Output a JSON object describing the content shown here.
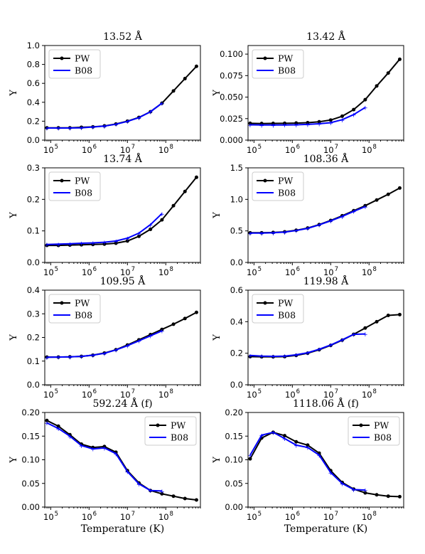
{
  "colors": {
    "PW": "#000000",
    "B08": "#0000ff"
  },
  "x_tick_labels": [
    "10",
    "10",
    "10",
    "10"
  ],
  "x_tick_exponents": [
    "5",
    "6",
    "7",
    "8"
  ],
  "chart_data": [
    {
      "type": "line",
      "title": "13.52 Å",
      "xlabel": "",
      "ylabel": "Y",
      "xscale": "log",
      "xlim": [
        70000,
        800000000
      ],
      "ylim": [
        0.0,
        1.0
      ],
      "yticks": [
        0.0,
        0.2,
        0.4,
        0.6,
        0.8,
        1.0
      ],
      "ytick_labels": [
        "0.0",
        "0.2",
        "0.4",
        "0.6",
        "0.8",
        "1.0"
      ],
      "legend": "upper-left",
      "series": [
        {
          "name": "PW",
          "x": [
            79400,
            158500,
            316200,
            631000,
            1259000,
            2512000,
            5012000,
            10000000,
            19950000,
            39810000,
            79430000,
            158500000,
            316200000,
            631000000
          ],
          "y": [
            0.13,
            0.13,
            0.13,
            0.135,
            0.14,
            0.15,
            0.17,
            0.2,
            0.24,
            0.3,
            0.39,
            0.52,
            0.65,
            0.78
          ]
        },
        {
          "name": "B08",
          "x": [
            79400,
            158500,
            316200,
            631000,
            1259000,
            2512000,
            5012000,
            10000000,
            19950000,
            39810000,
            79430000
          ],
          "y": [
            0.128,
            0.127,
            0.128,
            0.13,
            0.138,
            0.148,
            0.168,
            0.198,
            0.237,
            0.3,
            0.39
          ]
        }
      ]
    },
    {
      "type": "line",
      "title": "13.42 Å",
      "xlabel": "",
      "ylabel": "Y",
      "xscale": "log",
      "xlim": [
        70000,
        800000000
      ],
      "ylim": [
        0.0,
        0.11
      ],
      "yticks": [
        0.0,
        0.025,
        0.05,
        0.075,
        0.1
      ],
      "ytick_labels": [
        "0.000",
        "0.025",
        "0.050",
        "0.075",
        "0.100"
      ],
      "legend": "upper-left",
      "series": [
        {
          "name": "PW",
          "x": [
            79400,
            158500,
            316200,
            631000,
            1259000,
            2512000,
            5012000,
            10000000,
            19950000,
            39810000,
            79430000,
            158500000,
            316200000,
            631000000
          ],
          "y": [
            0.0195,
            0.0193,
            0.0194,
            0.0195,
            0.0198,
            0.0203,
            0.0213,
            0.0233,
            0.0278,
            0.0355,
            0.047,
            0.063,
            0.078,
            0.094
          ]
        },
        {
          "name": "B08",
          "x": [
            79400,
            158500,
            316200,
            631000,
            1259000,
            2512000,
            5012000,
            10000000,
            19950000,
            39810000,
            79430000
          ],
          "y": [
            0.0178,
            0.0175,
            0.0175,
            0.0176,
            0.0178,
            0.0183,
            0.019,
            0.0203,
            0.0237,
            0.0297,
            0.038
          ]
        }
      ]
    },
    {
      "type": "line",
      "title": "13.74 Å",
      "xlabel": "",
      "ylabel": "Y",
      "xscale": "log",
      "xlim": [
        70000,
        800000000
      ],
      "ylim": [
        0.0,
        0.3
      ],
      "yticks": [
        0.0,
        0.1,
        0.2,
        0.3
      ],
      "ytick_labels": [
        "0.0",
        "0.1",
        "0.2",
        "0.3"
      ],
      "legend": "upper-left",
      "series": [
        {
          "name": "PW",
          "x": [
            79400,
            158500,
            316200,
            631000,
            1259000,
            2512000,
            5012000,
            10000000,
            19950000,
            39810000,
            79430000,
            158500000,
            316200000,
            631000000
          ],
          "y": [
            0.054,
            0.054,
            0.055,
            0.056,
            0.057,
            0.058,
            0.061,
            0.068,
            0.083,
            0.105,
            0.135,
            0.18,
            0.225,
            0.27
          ]
        },
        {
          "name": "B08",
          "x": [
            79400,
            158500,
            316200,
            631000,
            1259000,
            2512000,
            5012000,
            10000000,
            19950000,
            39810000,
            79430000
          ],
          "y": [
            0.057,
            0.058,
            0.059,
            0.061,
            0.062,
            0.064,
            0.068,
            0.077,
            0.093,
            0.12,
            0.155
          ]
        }
      ]
    },
    {
      "type": "line",
      "title": "108.36 Å",
      "xlabel": "",
      "ylabel": "Y",
      "xscale": "log",
      "xlim": [
        70000,
        800000000
      ],
      "ylim": [
        0.0,
        1.5
      ],
      "yticks": [
        0.0,
        0.5,
        1.0,
        1.5
      ],
      "ytick_labels": [
        "0.0",
        "0.5",
        "1.0",
        "1.5"
      ],
      "legend": "upper-left",
      "series": [
        {
          "name": "PW",
          "x": [
            79400,
            158500,
            316200,
            631000,
            1259000,
            2512000,
            5012000,
            10000000,
            19950000,
            39810000,
            79430000,
            158500000,
            316200000,
            631000000
          ],
          "y": [
            0.47,
            0.47,
            0.475,
            0.485,
            0.51,
            0.545,
            0.6,
            0.665,
            0.74,
            0.82,
            0.9,
            0.99,
            1.08,
            1.18
          ]
        },
        {
          "name": "B08",
          "x": [
            79400,
            158500,
            316200,
            631000,
            1259000,
            2512000,
            5012000,
            10000000,
            19950000,
            39810000,
            79430000
          ],
          "y": [
            0.465,
            0.465,
            0.47,
            0.48,
            0.505,
            0.54,
            0.595,
            0.66,
            0.73,
            0.81,
            0.885
          ]
        }
      ]
    },
    {
      "type": "line",
      "title": "109.95 Å",
      "xlabel": "",
      "ylabel": "Y",
      "xscale": "log",
      "xlim": [
        70000,
        800000000
      ],
      "ylim": [
        0.0,
        0.4
      ],
      "yticks": [
        0.0,
        0.1,
        0.2,
        0.3,
        0.4
      ],
      "ytick_labels": [
        "0.0",
        "0.1",
        "0.2",
        "0.3",
        "0.4"
      ],
      "legend": "upper-left",
      "series": [
        {
          "name": "PW",
          "x": [
            79400,
            158500,
            316200,
            631000,
            1259000,
            2512000,
            5012000,
            10000000,
            19950000,
            39810000,
            79430000,
            158500000,
            316200000,
            631000000
          ],
          "y": [
            0.117,
            0.117,
            0.118,
            0.12,
            0.125,
            0.134,
            0.148,
            0.168,
            0.19,
            0.212,
            0.234,
            0.256,
            0.28,
            0.306
          ]
        },
        {
          "name": "B08",
          "x": [
            79400,
            158500,
            316200,
            631000,
            1259000,
            2512000,
            5012000,
            10000000,
            19950000,
            39810000,
            79430000
          ],
          "y": [
            0.116,
            0.117,
            0.118,
            0.12,
            0.125,
            0.133,
            0.147,
            0.165,
            0.186,
            0.207,
            0.228
          ]
        }
      ]
    },
    {
      "type": "line",
      "title": "119.98 Å",
      "xlabel": "",
      "ylabel": "Y",
      "xscale": "log",
      "xlim": [
        70000,
        800000000
      ],
      "ylim": [
        0.0,
        0.6
      ],
      "yticks": [
        0.0,
        0.2,
        0.4,
        0.6
      ],
      "ytick_labels": [
        "0.0",
        "0.2",
        "0.4",
        "0.6"
      ],
      "legend": "upper-left",
      "series": [
        {
          "name": "PW",
          "x": [
            79400,
            158500,
            316200,
            631000,
            1259000,
            2512000,
            5012000,
            10000000,
            19950000,
            39810000,
            79430000,
            158500000,
            316200000,
            631000000
          ],
          "y": [
            0.178,
            0.177,
            0.177,
            0.178,
            0.186,
            0.2,
            0.222,
            0.25,
            0.283,
            0.32,
            0.36,
            0.4,
            0.44,
            0.445
          ]
        },
        {
          "name": "B08",
          "x": [
            79400,
            158500,
            316200,
            631000,
            1259000,
            2512000,
            5012000,
            10000000,
            19950000,
            39810000,
            79430000
          ],
          "y": [
            0.186,
            0.182,
            0.18,
            0.182,
            0.19,
            0.203,
            0.225,
            0.252,
            0.285,
            0.32,
            0.322
          ]
        }
      ]
    },
    {
      "type": "line",
      "title": "592.24 Å (f)",
      "xlabel": "Temperature (K)",
      "ylabel": "Y",
      "xscale": "log",
      "xlim": [
        70000,
        800000000
      ],
      "ylim": [
        0.0,
        0.2
      ],
      "yticks": [
        0.0,
        0.05,
        0.1,
        0.15,
        0.2
      ],
      "ytick_labels": [
        "0.00",
        "0.05",
        "0.10",
        "0.15",
        "0.20"
      ],
      "legend": "upper-right",
      "series": [
        {
          "name": "PW",
          "x": [
            79400,
            158500,
            316200,
            631000,
            1259000,
            2512000,
            5012000,
            10000000,
            19950000,
            39810000,
            79430000,
            158500000,
            316200000,
            631000000
          ],
          "y": [
            0.183,
            0.171,
            0.153,
            0.133,
            0.126,
            0.128,
            0.116,
            0.077,
            0.051,
            0.035,
            0.028,
            0.023,
            0.018,
            0.015
          ]
        },
        {
          "name": "B08",
          "x": [
            79400,
            158500,
            316200,
            631000,
            1259000,
            2512000,
            5012000,
            10000000,
            19950000,
            39810000,
            79430000
          ],
          "y": [
            0.178,
            0.166,
            0.15,
            0.13,
            0.123,
            0.125,
            0.113,
            0.075,
            0.049,
            0.035,
            0.034
          ]
        }
      ]
    },
    {
      "type": "line",
      "title": "1118.06 Å (f)",
      "xlabel": "Temperature (K)",
      "ylabel": "Y",
      "xscale": "log",
      "xlim": [
        70000,
        800000000
      ],
      "ylim": [
        0.0,
        0.2
      ],
      "yticks": [
        0.0,
        0.05,
        0.1,
        0.15,
        0.2
      ],
      "ytick_labels": [
        "0.00",
        "0.05",
        "0.10",
        "0.15",
        "0.20"
      ],
      "legend": "upper-right",
      "series": [
        {
          "name": "PW",
          "x": [
            79400,
            158500,
            316200,
            631000,
            1259000,
            2512000,
            5012000,
            10000000,
            19950000,
            39810000,
            79430000,
            158500000,
            316200000,
            631000000
          ],
          "y": [
            0.102,
            0.146,
            0.158,
            0.151,
            0.138,
            0.131,
            0.114,
            0.077,
            0.052,
            0.038,
            0.03,
            0.026,
            0.023,
            0.022
          ]
        },
        {
          "name": "B08",
          "x": [
            79400,
            158500,
            316200,
            631000,
            1259000,
            2512000,
            5012000,
            10000000,
            19950000,
            39810000,
            79430000
          ],
          "y": [
            0.11,
            0.152,
            0.158,
            0.145,
            0.131,
            0.126,
            0.11,
            0.073,
            0.05,
            0.037,
            0.036
          ]
        }
      ]
    }
  ]
}
